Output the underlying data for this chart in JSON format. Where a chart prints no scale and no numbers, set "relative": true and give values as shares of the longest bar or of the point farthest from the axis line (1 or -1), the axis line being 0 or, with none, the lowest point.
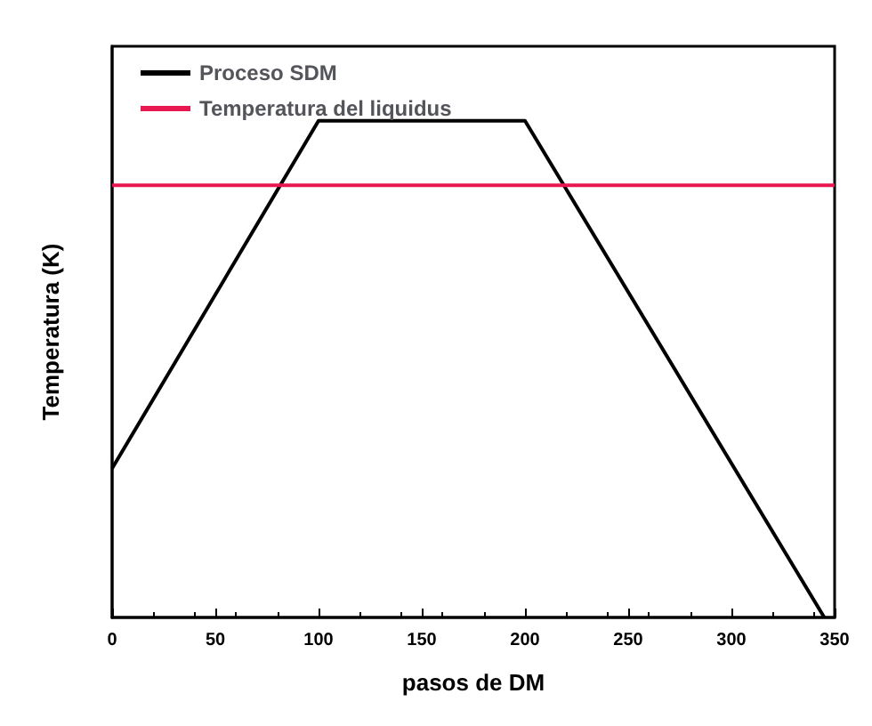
{
  "chart_data": {
    "type": "line",
    "xlabel": "pasos de DM",
    "ylabel": "Temperatura (K)",
    "relative": true,
    "xlim": [
      0,
      350
    ],
    "xticks": [
      0,
      50,
      100,
      150,
      200,
      250,
      300,
      350
    ],
    "legend": "top left",
    "grid": false,
    "marker": "none",
    "line_style": "solid",
    "series": [
      {
        "name": "Proceso SDM",
        "color": "#000000",
        "x": [
          0,
          100,
          200,
          345
        ],
        "values": [
          0.3,
          1,
          1,
          0
        ]
      },
      {
        "name": "Temperatura del liquidus",
        "color": "#e8174f",
        "x": [
          0,
          350
        ],
        "values": [
          0.87,
          0.87
        ]
      }
    ]
  }
}
